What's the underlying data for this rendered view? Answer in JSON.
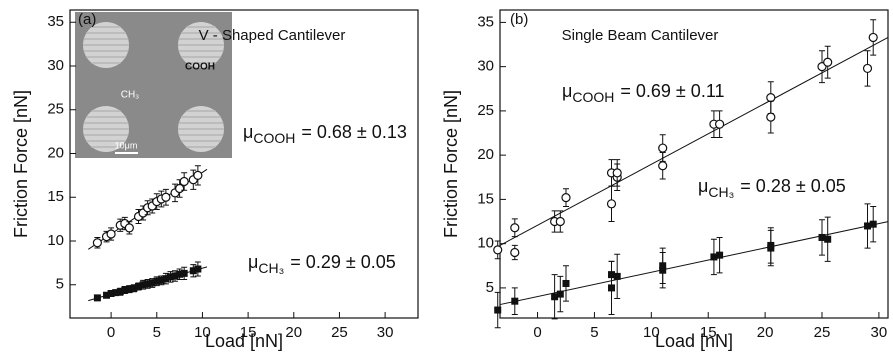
{
  "chart_data": [
    {
      "type": "scatter",
      "panel_label": "(a)",
      "title": "V - Shaped Cantilever",
      "x_label": "Load [nN]",
      "y_label": "Friction Force [nN]",
      "xlim": [
        -4.5,
        33.6
      ],
      "ylim": [
        1.2,
        36.4
      ],
      "xticks": [
        0,
        5,
        10,
        15,
        20,
        25,
        30
      ],
      "yticks": [
        5,
        10,
        15,
        20,
        25,
        30,
        35
      ],
      "series": [
        {
          "name": "COOH",
          "marker": "open-circle",
          "color": "#111111",
          "x": [
            -1.5,
            -0.5,
            0,
            1,
            1.5,
            2,
            3,
            3.5,
            4,
            4.5,
            5,
            5.5,
            6,
            7,
            7.5,
            8,
            9,
            9.5
          ],
          "values": [
            9.8,
            10.5,
            10.8,
            11.8,
            12,
            11.5,
            12.8,
            13.2,
            13.8,
            14,
            14.5,
            14.8,
            15,
            15.5,
            16,
            16.8,
            17,
            17.5
          ],
          "errors": [
            0.6,
            0.6,
            0.7,
            0.7,
            0.7,
            0.7,
            0.8,
            0.8,
            0.8,
            0.8,
            0.9,
            0.9,
            0.9,
            1,
            1,
            1,
            1.1,
            1.1
          ]
        },
        {
          "name": "CH₃",
          "marker": "filled-square",
          "color": "#111111",
          "x": [
            -1.5,
            -0.5,
            0,
            0.5,
            1,
            1.5,
            2,
            2.5,
            3,
            3.5,
            4,
            4.5,
            5,
            5.5,
            6,
            6.5,
            7,
            7.5,
            8,
            9,
            9.5
          ],
          "values": [
            3.5,
            3.8,
            4,
            4.1,
            4.2,
            4.4,
            4.5,
            4.6,
            4.8,
            5,
            5.1,
            5.2,
            5.4,
            5.5,
            5.7,
            5.9,
            6,
            6.2,
            6.3,
            6.6,
            6.8
          ],
          "errors": [
            0.3,
            0.3,
            0.3,
            0.3,
            0.4,
            0.4,
            0.4,
            0.4,
            0.4,
            0.5,
            0.5,
            0.5,
            0.5,
            0.5,
            0.6,
            0.6,
            0.6,
            0.6,
            0.7,
            0.7,
            0.8
          ]
        }
      ],
      "annotations": [
        {
          "symbol": "μ",
          "series": 0,
          "text": "= 0.68 ± 0.13"
        },
        {
          "symbol": "μ",
          "series": 1,
          "text": "= 0.29 ± 0.05"
        }
      ],
      "inset": {
        "labels": [
          "COOH",
          "CH₃",
          "10μm"
        ]
      }
    },
    {
      "type": "scatter",
      "panel_label": "(b)",
      "title": "Single Beam Cantilever",
      "x_label": "Load [nN]",
      "y_label": "Friction Force [nN]",
      "xlim": [
        -3.3,
        30.8
      ],
      "ylim": [
        1.6,
        36.4
      ],
      "xticks": [
        0,
        5,
        10,
        15,
        20,
        25,
        30
      ],
      "yticks": [
        5,
        10,
        15,
        20,
        25,
        30,
        35
      ],
      "series": [
        {
          "name": "COOH",
          "marker": "open-circle",
          "color": "#111111",
          "x": [
            -3.5,
            -2,
            -2,
            1.5,
            2,
            2.5,
            6.5,
            6.5,
            7,
            7,
            11,
            11,
            15.5,
            16,
            20.5,
            20.5,
            25,
            25.5,
            29,
            29.5
          ],
          "values": [
            9.3,
            11.8,
            9,
            12.5,
            12.5,
            15.2,
            18,
            14.5,
            17.5,
            18,
            20.8,
            18.8,
            23.5,
            23.5,
            26.5,
            24.3,
            30,
            30.5,
            29.8,
            33.3
          ],
          "errors": [
            1,
            1,
            0.8,
            1.2,
            1.2,
            1,
            1.5,
            2,
            1.5,
            1.5,
            1.5,
            1.5,
            1.5,
            1.5,
            1.8,
            1.8,
            1.8,
            1.8,
            2,
            2
          ]
        },
        {
          "name": "CH₃",
          "marker": "filled-square",
          "color": "#111111",
          "x": [
            -3.5,
            -2,
            1.5,
            2,
            2.5,
            6.5,
            6.5,
            7,
            11,
            11,
            15.5,
            16,
            20.5,
            20.5,
            25,
            25.5,
            29,
            29.5
          ],
          "values": [
            2.5,
            3.5,
            4,
            4.3,
            5.5,
            6.5,
            5,
            6.3,
            7,
            7.5,
            8.5,
            8.7,
            9.5,
            9.8,
            10.7,
            10.5,
            12,
            12.2
          ],
          "errors": [
            2,
            1.5,
            2.5,
            2,
            2,
            1.5,
            3,
            2.5,
            2,
            2,
            2,
            2,
            2,
            2,
            2,
            2.5,
            2.5,
            2
          ]
        }
      ],
      "annotations": [
        {
          "symbol": "μ",
          "series": 0,
          "text": "= 0.69 ± 0.11"
        },
        {
          "symbol": "μ",
          "series": 1,
          "text": "= 0.28 ± 0.05"
        }
      ]
    }
  ]
}
